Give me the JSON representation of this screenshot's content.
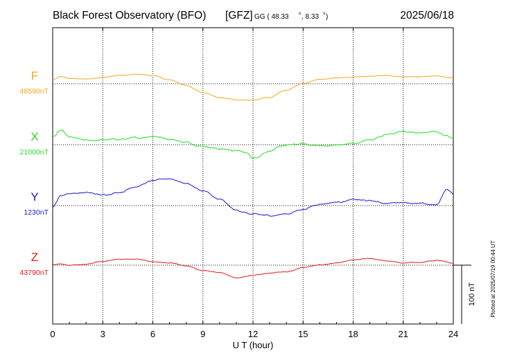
{
  "header": {
    "observatory": "Black Forest Observatory (BFO)",
    "institute": "[GFZ]",
    "coords_prefix": "GG ( 48.33",
    "lat_unit": "o",
    "coords_sep": ",   8.33",
    "lon_unit": "o",
    "coords_suffix": ")",
    "date": "2025/06/18"
  },
  "footer_note": "Plotted at 2025/07/19 00:44 UT",
  "chart_data": {
    "type": "line",
    "title": "Black Forest Observatory (BFO) [GFZ] 2025/06/18",
    "xlabel": "U T (hour)",
    "ylabel": "",
    "xlim": [
      0,
      24
    ],
    "x_ticks": [
      0,
      3,
      6,
      9,
      12,
      15,
      18,
      21,
      24
    ],
    "x_tick_labels": [
      "0",
      "3",
      "6",
      "9",
      "12",
      "15",
      "18",
      "21",
      "24"
    ],
    "grid": true,
    "scale_bar": {
      "value": 100,
      "label": "100 nT"
    },
    "series": [
      {
        "name": "F",
        "baseline_label": "48590nT",
        "baseline": 48590,
        "color": "#f0a818",
        "x": [
          0,
          0.5,
          1,
          2,
          3,
          4,
          5,
          6,
          7,
          8,
          9,
          10,
          11,
          12,
          13,
          14,
          15,
          16,
          17,
          18,
          19,
          20,
          21,
          22,
          23,
          24
        ],
        "values": [
          48597,
          48602,
          48599,
          48598,
          48601,
          48604,
          48606,
          48604,
          48597,
          48587,
          48575,
          48566,
          48563,
          48562,
          48567,
          48579,
          48591,
          48598,
          48600,
          48601,
          48603,
          48604,
          48602,
          48602,
          48603,
          48600
        ]
      },
      {
        "name": "X",
        "baseline_label": "21000nT",
        "baseline": 21000,
        "color": "#22dd22",
        "x": [
          0,
          0.5,
          1,
          2,
          3,
          4,
          5,
          6,
          7,
          8,
          9,
          10,
          11,
          11.7,
          12,
          13,
          14,
          15,
          16,
          17,
          18,
          19,
          20,
          21,
          22,
          23,
          23.6,
          24
        ],
        "values": [
          21013,
          21024,
          21012,
          21007,
          21008,
          21009,
          21011,
          21015,
          21010,
          21004,
          20998,
          20993,
          20990,
          20985,
          20977,
          20990,
          20999,
          21001,
          20998,
          20999,
          21002,
          21008,
          21018,
          21022,
          21020,
          21022,
          21015,
          21013
        ]
      },
      {
        "name": "Y",
        "baseline_label": "1230nT",
        "baseline": 1230,
        "color": "#1a1ad0",
        "x": [
          0,
          0.5,
          1,
          2,
          3,
          4,
          5,
          6,
          7,
          8,
          9,
          10,
          11,
          12,
          13,
          14,
          15,
          16,
          17,
          18,
          19,
          20,
          21,
          22,
          23,
          23.6,
          24
        ],
        "values": [
          1228,
          1247,
          1251,
          1252,
          1248,
          1253,
          1263,
          1272,
          1276,
          1268,
          1255,
          1240,
          1222,
          1215,
          1213,
          1216,
          1224,
          1233,
          1236,
          1240,
          1238,
          1234,
          1236,
          1233,
          1231,
          1258,
          1250
        ]
      },
      {
        "name": "Z",
        "baseline_label": "43790nT",
        "baseline": 43790,
        "color": "#e01818",
        "x": [
          0,
          0.5,
          1,
          2,
          3,
          4,
          5,
          6,
          7,
          8,
          9,
          10,
          11,
          12,
          13,
          14,
          15,
          16,
          17,
          18,
          19,
          20,
          21,
          22,
          23,
          24
        ],
        "values": [
          43791,
          43792,
          43790,
          43792,
          43796,
          43800,
          43800,
          43796,
          43794,
          43789,
          43781,
          43777,
          43769,
          43773,
          43776,
          43779,
          43786,
          43790,
          43794,
          43799,
          43801,
          43797,
          43794,
          43795,
          43798,
          43793
        ]
      }
    ]
  }
}
